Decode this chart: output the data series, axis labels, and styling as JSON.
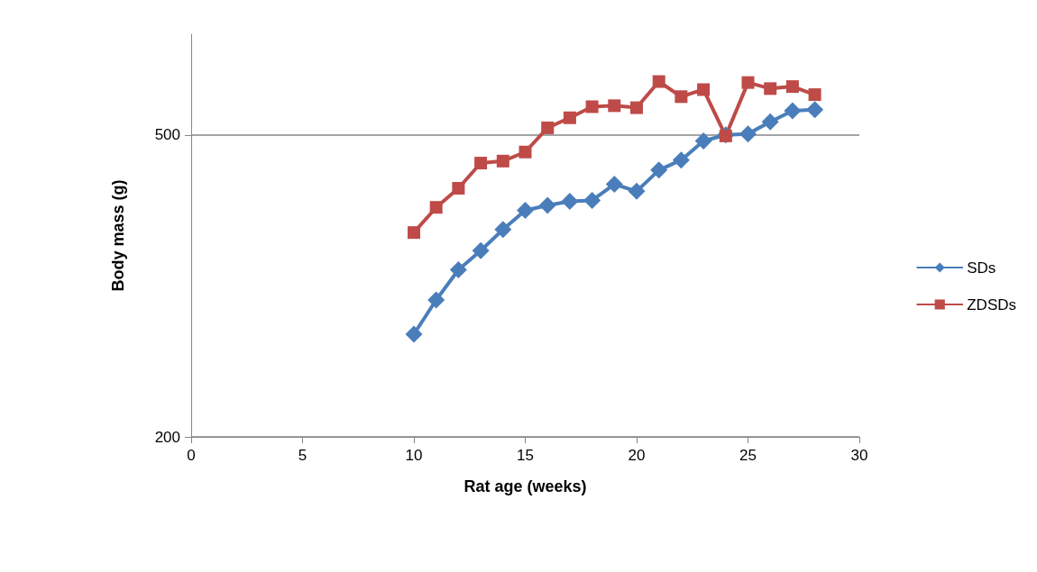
{
  "chart_data": {
    "type": "line",
    "xlabel": "Rat age (weeks)",
    "ylabel": "Body mass (g)",
    "x": [
      10,
      11,
      12,
      13,
      14,
      15,
      16,
      17,
      18,
      19,
      20,
      21,
      22,
      23,
      24,
      25,
      26,
      27,
      28
    ],
    "xlim": [
      0,
      30
    ],
    "xticks": [
      0,
      5,
      10,
      15,
      20,
      25,
      30
    ],
    "ylim": [
      200,
      600
    ],
    "yticks": [
      200,
      500
    ],
    "grid": "y",
    "legend": "right",
    "series": [
      {
        "name": "SDs",
        "color": "#4a7ebb",
        "marker": "diamond",
        "values": [
          302,
          336,
          366,
          385,
          406,
          425,
          430,
          434,
          435,
          451,
          444,
          465,
          475,
          494,
          500,
          501,
          513,
          524,
          525
        ]
      },
      {
        "name": "ZDSDs",
        "color": "#be4b48",
        "marker": "square",
        "values": [
          403,
          428,
          447,
          472,
          474,
          483,
          507,
          517,
          528,
          529,
          527,
          553,
          538,
          545,
          499,
          552,
          546,
          548,
          540
        ]
      }
    ]
  }
}
